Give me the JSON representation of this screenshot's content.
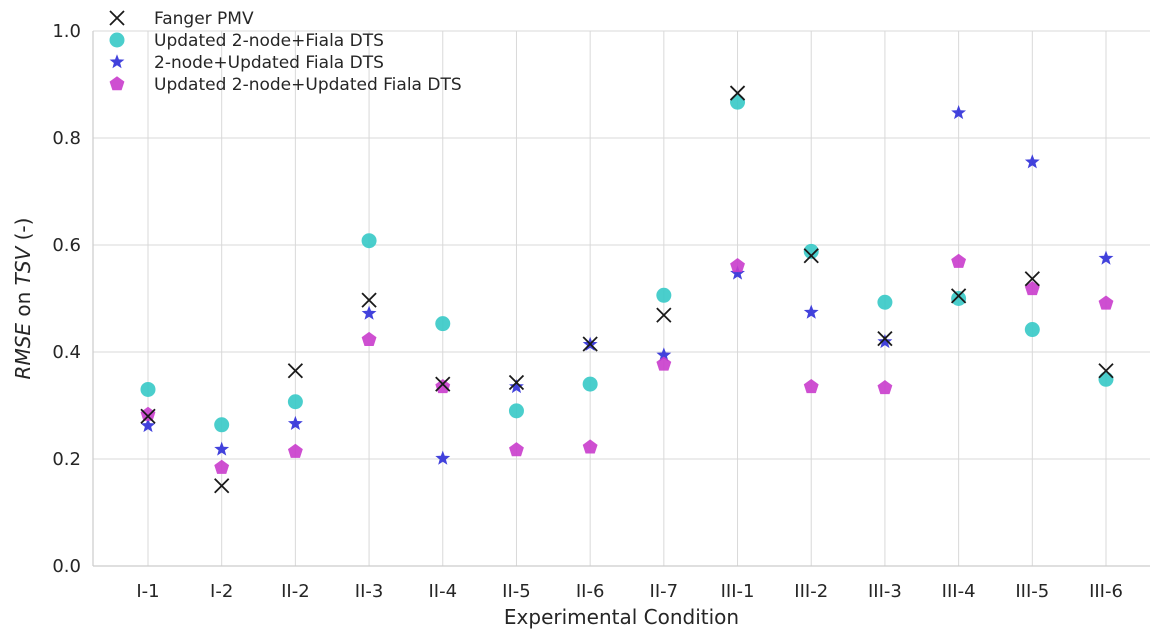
{
  "chart_data": {
    "type": "scatter",
    "categories": [
      "I-1",
      "I-2",
      "II-2",
      "II-3",
      "II-4",
      "II-5",
      "II-6",
      "II-7",
      "III-1",
      "III-2",
      "III-3",
      "III-4",
      "III-5",
      "III-6"
    ],
    "xlabel": "Experimental Condition",
    "ylabel_parts": [
      {
        "text": "RMSE",
        "italic": true
      },
      {
        "text": " on ",
        "italic": false
      },
      {
        "text": "TSV",
        "italic": true
      },
      {
        "text": " (-)",
        "italic": false
      }
    ],
    "ylim": [
      0,
      1.0
    ],
    "yticks": [
      0.0,
      0.2,
      0.4,
      0.6,
      0.8,
      1.0
    ],
    "ytick_labels": [
      "0.0",
      "0.2",
      "0.4",
      "0.6",
      "0.8",
      "1.0"
    ],
    "grid": true,
    "legend_position": "top-left",
    "series": [
      {
        "name": "Fanger PMV",
        "marker": "x",
        "color": "#1a1a1a",
        "values": [
          0.28,
          0.15,
          0.365,
          0.497,
          0.34,
          0.343,
          0.415,
          0.469,
          0.884,
          0.58,
          0.425,
          0.505,
          0.537,
          0.365
        ]
      },
      {
        "name": "Updated 2-node+Fiala DTS",
        "marker": "circle",
        "color": "#36c9c6",
        "values": [
          0.33,
          0.264,
          0.307,
          0.608,
          0.453,
          0.29,
          0.34,
          0.506,
          0.867,
          0.588,
          0.493,
          0.5,
          0.442,
          0.349
        ]
      },
      {
        "name": " 2-node+Updated Fiala DTS",
        "marker": "star",
        "color": "#2e2ed8",
        "values": [
          0.262,
          0.218,
          0.266,
          0.472,
          0.201,
          0.335,
          0.414,
          0.394,
          0.547,
          0.474,
          0.419,
          0.847,
          0.755,
          0.575
        ]
      },
      {
        "name": "Updated 2-node+Updated Fiala DTS",
        "marker": "pentagon",
        "color": "#c93ccc",
        "values": [
          0.283,
          0.184,
          0.214,
          0.423,
          0.335,
          0.217,
          0.222,
          0.377,
          0.561,
          0.335,
          0.333,
          0.569,
          0.518,
          0.491
        ]
      }
    ]
  }
}
